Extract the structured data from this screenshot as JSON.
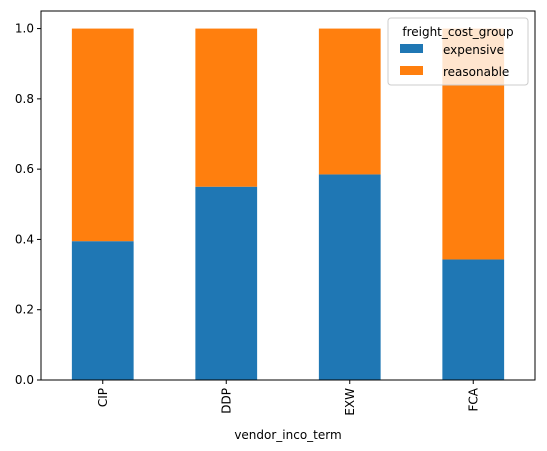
{
  "chart_data": {
    "type": "bar",
    "stacked": true,
    "title": "",
    "xlabel": "vendor_inco_term",
    "ylabel": "",
    "categories": [
      "CIP",
      "DDP",
      "EXW",
      "FCA"
    ],
    "series": [
      {
        "name": "expensive",
        "color": "#1f77b4",
        "values": [
          0.395,
          0.55,
          0.585,
          0.343
        ]
      },
      {
        "name": "reasonable",
        "color": "#ff7f0e",
        "values": [
          0.605,
          0.45,
          0.415,
          0.657
        ]
      }
    ],
    "ylim": [
      0,
      1.05
    ],
    "yticks": [
      "0.0",
      "0.2",
      "0.4",
      "0.6",
      "0.8",
      "1.0"
    ],
    "legend": {
      "title": "freight_cost_group",
      "placement": "top-right"
    },
    "grid": false
  }
}
